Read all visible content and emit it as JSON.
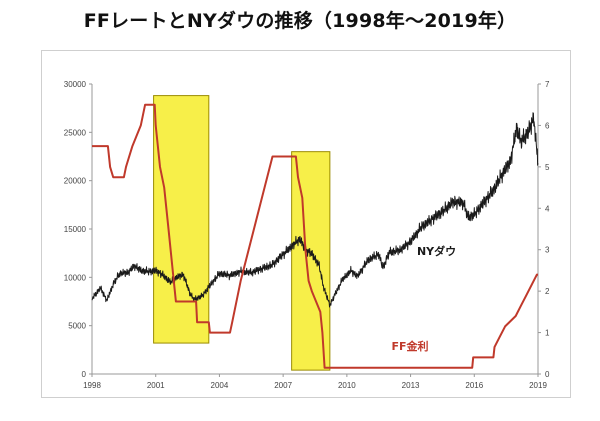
{
  "title": "FFレートとNYダウの推移（1998年〜2019年）",
  "chart_data": {
    "type": "line",
    "title": "",
    "xlabel": "",
    "ylabel_left": "",
    "ylabel_right": "",
    "x_ticks": [
      "1998",
      "2001",
      "2004",
      "2007",
      "2010",
      "2013",
      "2016",
      "2019"
    ],
    "xlim": [
      1998,
      2019
    ],
    "ylim_left": [
      0,
      30000
    ],
    "ylim_right": [
      0,
      7
    ],
    "left_ticks": [
      0,
      5000,
      10000,
      15000,
      20000,
      25000,
      30000
    ],
    "right_ticks": [
      0,
      1,
      2,
      3,
      4,
      5,
      6,
      7
    ],
    "grid": false,
    "colors": {
      "dow": "#1a1a1a",
      "ff": "#c0392b",
      "highlight": "#f6ee3a",
      "highlight_border": "#9b8c00"
    },
    "series": [
      {
        "name": "NYダウ",
        "axis": "left",
        "points": [
          [
            1998.0,
            7800
          ],
          [
            1998.4,
            8900
          ],
          [
            1998.7,
            7600
          ],
          [
            1999.0,
            9300
          ],
          [
            1999.3,
            10400
          ],
          [
            1999.7,
            10500
          ],
          [
            2000.0,
            11200
          ],
          [
            2000.3,
            10700
          ],
          [
            2000.7,
            10600
          ],
          [
            2001.0,
            10700
          ],
          [
            2001.3,
            10300
          ],
          [
            2001.7,
            9500
          ],
          [
            2002.0,
            10000
          ],
          [
            2002.3,
            10300
          ],
          [
            2002.6,
            8400
          ],
          [
            2002.8,
            7700
          ],
          [
            2003.2,
            8100
          ],
          [
            2003.6,
            9300
          ],
          [
            2004.0,
            10400
          ],
          [
            2004.5,
            10200
          ],
          [
            2005.0,
            10600
          ],
          [
            2005.5,
            10500
          ],
          [
            2006.0,
            10900
          ],
          [
            2006.5,
            11300
          ],
          [
            2007.0,
            12400
          ],
          [
            2007.4,
            13200
          ],
          [
            2007.8,
            14000
          ],
          [
            2008.0,
            13000
          ],
          [
            2008.4,
            12300
          ],
          [
            2008.7,
            11200
          ],
          [
            2008.9,
            9000
          ],
          [
            2009.2,
            7100
          ],
          [
            2009.5,
            8500
          ],
          [
            2009.8,
            9800
          ],
          [
            2010.2,
            10700
          ],
          [
            2010.5,
            10100
          ],
          [
            2011.0,
            11800
          ],
          [
            2011.5,
            12400
          ],
          [
            2011.7,
            11000
          ],
          [
            2012.0,
            12600
          ],
          [
            2012.5,
            12800
          ],
          [
            2013.0,
            13700
          ],
          [
            2013.5,
            15200
          ],
          [
            2014.0,
            16000
          ],
          [
            2014.5,
            16800
          ],
          [
            2015.0,
            17800
          ],
          [
            2015.5,
            17700
          ],
          [
            2015.7,
            16200
          ],
          [
            2016.0,
            16500
          ],
          [
            2016.5,
            17900
          ],
          [
            2016.9,
            19000
          ],
          [
            2017.3,
            20600
          ],
          [
            2017.7,
            22000
          ],
          [
            2018.0,
            25500
          ],
          [
            2018.2,
            24000
          ],
          [
            2018.6,
            25300
          ],
          [
            2018.8,
            26500
          ],
          [
            2018.95,
            23000
          ],
          [
            2019.0,
            21800
          ]
        ]
      },
      {
        "name": "FF金利",
        "axis": "right",
        "points": [
          [
            1998.0,
            5.5
          ],
          [
            1998.75,
            5.5
          ],
          [
            1998.85,
            5.0
          ],
          [
            1999.0,
            4.75
          ],
          [
            1999.5,
            4.75
          ],
          [
            1999.6,
            5.0
          ],
          [
            1999.9,
            5.5
          ],
          [
            2000.1,
            5.75
          ],
          [
            2000.3,
            6.0
          ],
          [
            2000.5,
            6.5
          ],
          [
            2000.95,
            6.5
          ],
          [
            2001.0,
            6.0
          ],
          [
            2001.2,
            5.0
          ],
          [
            2001.4,
            4.5
          ],
          [
            2001.6,
            3.5
          ],
          [
            2001.8,
            2.5
          ],
          [
            2001.95,
            1.75
          ],
          [
            2002.9,
            1.75
          ],
          [
            2002.95,
            1.25
          ],
          [
            2003.5,
            1.25
          ],
          [
            2003.55,
            1.0
          ],
          [
            2004.5,
            1.0
          ],
          [
            2004.6,
            1.25
          ],
          [
            2005.0,
            2.25
          ],
          [
            2005.5,
            3.25
          ],
          [
            2006.0,
            4.25
          ],
          [
            2006.5,
            5.25
          ],
          [
            2007.6,
            5.25
          ],
          [
            2007.7,
            4.75
          ],
          [
            2007.9,
            4.25
          ],
          [
            2008.05,
            3.0
          ],
          [
            2008.2,
            2.25
          ],
          [
            2008.35,
            2.0
          ],
          [
            2008.75,
            1.5
          ],
          [
            2008.85,
            1.0
          ],
          [
            2008.95,
            0.15
          ],
          [
            2015.9,
            0.15
          ],
          [
            2015.95,
            0.4
          ],
          [
            2016.9,
            0.4
          ],
          [
            2016.95,
            0.65
          ],
          [
            2017.2,
            0.9
          ],
          [
            2017.45,
            1.15
          ],
          [
            2017.95,
            1.4
          ],
          [
            2018.2,
            1.65
          ],
          [
            2018.45,
            1.9
          ],
          [
            2018.7,
            2.15
          ],
          [
            2018.95,
            2.4
          ],
          [
            2019.0,
            2.4
          ]
        ]
      }
    ],
    "highlights": [
      {
        "x0": 2000.9,
        "x1": 2003.5,
        "y0": 3200,
        "y1": 28800
      },
      {
        "x0": 2007.4,
        "x1": 2009.2,
        "y0": 400,
        "y1": 23000
      }
    ],
    "annotations": [
      {
        "text": "NYダウ",
        "x": 2013.3,
        "y": 12300,
        "color": "#1a1a1a"
      },
      {
        "text": "FF金利",
        "x": 2012.1,
        "y": 2500,
        "color": "#c0392b"
      }
    ]
  }
}
